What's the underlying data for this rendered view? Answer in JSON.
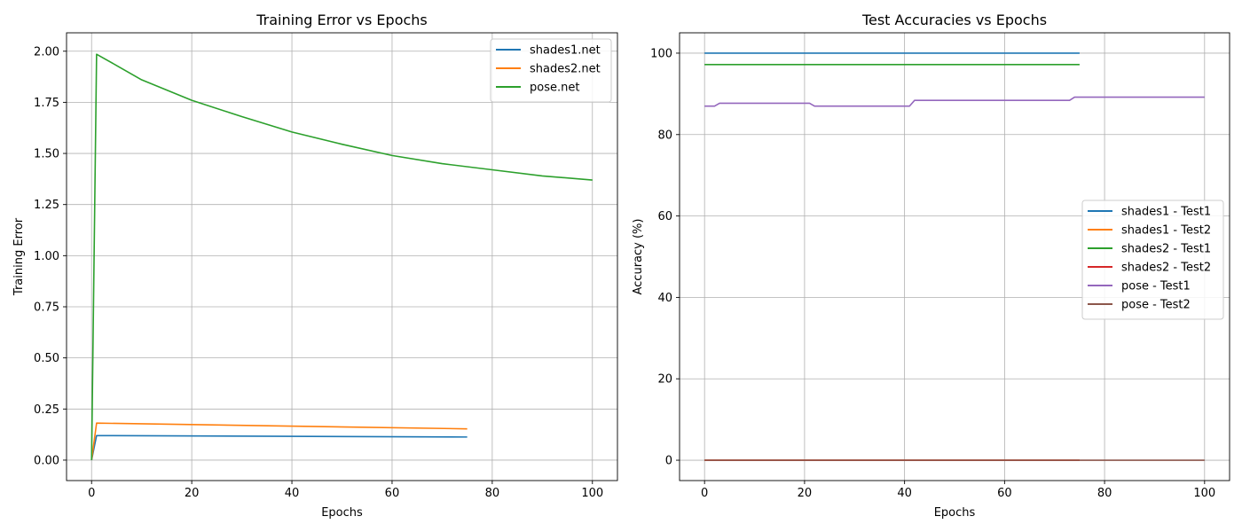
{
  "chart_data": [
    {
      "type": "line",
      "title": "Training Error vs Epochs",
      "xlabel": "Epochs",
      "ylabel": "Training Error",
      "xlim": [
        -5,
        105
      ],
      "ylim": [
        -0.1,
        2.09
      ],
      "xticks": [
        0,
        20,
        40,
        60,
        80,
        100
      ],
      "yticks": [
        0.0,
        0.25,
        0.5,
        0.75,
        1.0,
        1.25,
        1.5,
        1.75,
        2.0
      ],
      "ytick_labels": [
        "0.00",
        "0.25",
        "0.50",
        "0.75",
        "1.00",
        "1.25",
        "1.50",
        "1.75",
        "2.00"
      ],
      "grid": true,
      "legend_position": "top-right",
      "series": [
        {
          "name": "shades1.net",
          "color": "#1f77b4",
          "x": [
            0,
            1,
            75
          ],
          "y": [
            0.0,
            0.12,
            0.113
          ]
        },
        {
          "name": "shades2.net",
          "color": "#ff7f0e",
          "x": [
            0,
            1,
            75
          ],
          "y": [
            0.0,
            0.181,
            0.153
          ]
        },
        {
          "name": "pose.net",
          "color": "#2ca02c",
          "x": [
            0,
            1,
            5,
            10,
            20,
            30,
            40,
            50,
            60,
            70,
            80,
            90,
            100
          ],
          "y": [
            0.0,
            1.985,
            1.93,
            1.86,
            1.76,
            1.68,
            1.605,
            1.545,
            1.49,
            1.45,
            1.42,
            1.39,
            1.37
          ]
        }
      ]
    },
    {
      "type": "line",
      "title": "Test Accuracies vs Epochs",
      "xlabel": "Epochs",
      "ylabel": "Accuracy (%)",
      "xlim": [
        -5,
        105
      ],
      "ylim": [
        -5,
        105
      ],
      "xticks": [
        0,
        20,
        40,
        60,
        80,
        100
      ],
      "yticks": [
        0,
        20,
        40,
        60,
        80,
        100
      ],
      "ytick_labels": [
        "0",
        "20",
        "40",
        "60",
        "80",
        "100"
      ],
      "grid": true,
      "legend_position": "center-right",
      "series": [
        {
          "name": "shades1 - Test1",
          "color": "#1f77b4",
          "x": [
            0,
            75
          ],
          "y": [
            100,
            100
          ]
        },
        {
          "name": "shades1 - Test2",
          "color": "#ff7f0e",
          "x": [
            0,
            75
          ],
          "y": [
            0,
            0
          ]
        },
        {
          "name": "shades2 - Test1",
          "color": "#2ca02c",
          "x": [
            0,
            75
          ],
          "y": [
            97.2,
            97.2
          ]
        },
        {
          "name": "shades2 - Test2",
          "color": "#d62728",
          "x": [
            0,
            75
          ],
          "y": [
            0,
            0
          ]
        },
        {
          "name": "pose - Test1",
          "color": "#9467bd",
          "x": [
            0,
            2,
            3,
            21,
            22,
            41,
            42,
            73,
            74,
            100
          ],
          "y": [
            87.0,
            87.0,
            87.7,
            87.7,
            87.0,
            87.0,
            88.4,
            88.4,
            89.2,
            89.2
          ]
        },
        {
          "name": "pose - Test2",
          "color": "#8c564b",
          "x": [
            0,
            100
          ],
          "y": [
            0,
            0
          ]
        }
      ]
    }
  ]
}
